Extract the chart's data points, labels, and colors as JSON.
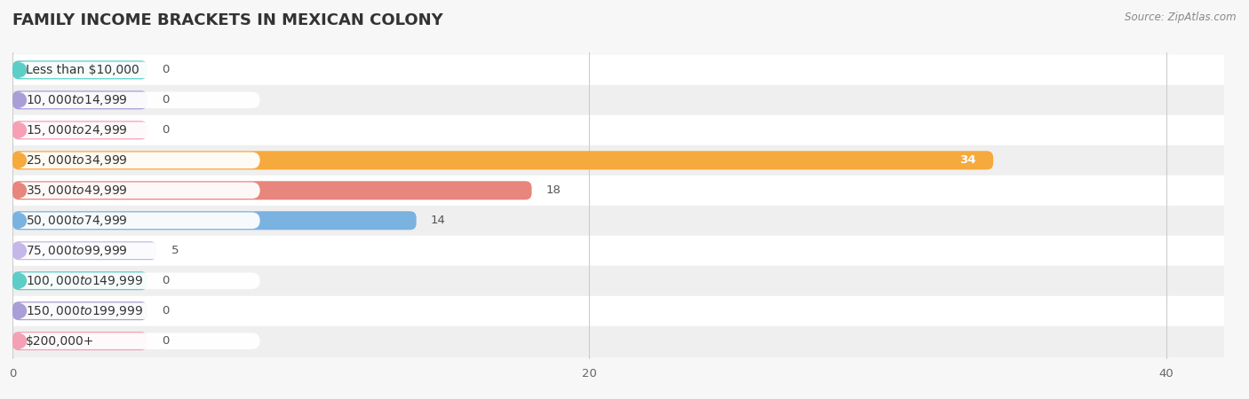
{
  "title": "FAMILY INCOME BRACKETS IN MEXICAN COLONY",
  "source": "Source: ZipAtlas.com",
  "categories": [
    "Less than $10,000",
    "$10,000 to $14,999",
    "$15,000 to $24,999",
    "$25,000 to $34,999",
    "$35,000 to $49,999",
    "$50,000 to $74,999",
    "$75,000 to $99,999",
    "$100,000 to $149,999",
    "$150,000 to $199,999",
    "$200,000+"
  ],
  "values": [
    0,
    0,
    0,
    34,
    18,
    14,
    5,
    0,
    0,
    0
  ],
  "bar_colors": [
    "#5dcdc7",
    "#a99fd6",
    "#f5a0b5",
    "#f6a93c",
    "#e8857c",
    "#7ab2e0",
    "#c5b8e8",
    "#5dcdc7",
    "#a99fd6",
    "#f5a0b5"
  ],
  "xlim": [
    0,
    42
  ],
  "xticks": [
    0,
    20,
    40
  ],
  "background_color": "#f7f7f7",
  "row_colors": [
    "#ffffff",
    "#efefef"
  ],
  "title_fontsize": 13,
  "label_fontsize": 10,
  "value_fontsize": 9.5
}
